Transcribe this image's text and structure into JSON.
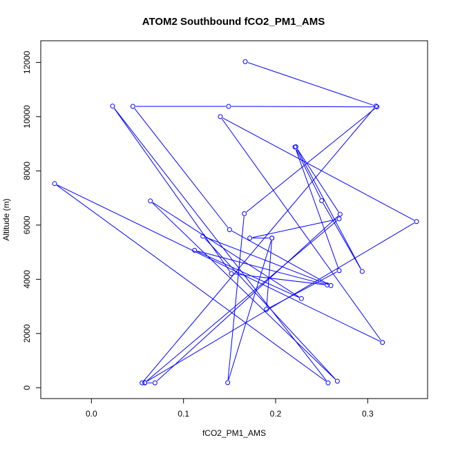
{
  "chart_data": {
    "type": "line",
    "title": "ATOM2 Southbound fCO2_PM1_AMS",
    "xlabel": "fCO2_PM1_AMS",
    "ylabel": "Altitude (m)",
    "xlim": [
      -0.055,
      0.365
    ],
    "ylim": [
      -400,
      12800
    ],
    "xticks": [
      "0.0",
      "0.1",
      "0.2",
      "0.3"
    ],
    "yticks": [
      "0",
      "2000",
      "4000",
      "6000",
      "8000",
      "10000",
      "12000"
    ],
    "grid": false,
    "legend": "none",
    "marker": "open-circle",
    "series": [
      {
        "color": "#0000ff",
        "points": [
          [
            0.167,
            12030
          ],
          [
            0.309,
            10390
          ],
          [
            0.055,
            180
          ],
          [
            0.058,
            180
          ],
          [
            0.069,
            180
          ],
          [
            0.27,
            6400
          ],
          [
            0.222,
            8890
          ],
          [
            0.294,
            4290
          ],
          [
            0.25,
            6900
          ],
          [
            0.221,
            8880
          ],
          [
            0.269,
            4320
          ],
          [
            0.19,
            2890
          ],
          [
            0.196,
            5520
          ],
          [
            0.148,
            190
          ],
          [
            0.166,
            6420
          ],
          [
            0.31,
            10360
          ],
          [
            0.149,
            10380
          ],
          [
            0.045,
            10380
          ],
          [
            0.15,
            5830
          ],
          [
            0.26,
            3770
          ],
          [
            0.121,
            5590
          ],
          [
            0.267,
            240
          ],
          [
            0.064,
            6890
          ],
          [
            0.228,
            3290
          ],
          [
            0.112,
            5070
          ],
          [
            0.256,
            3790
          ],
          [
            0.152,
            4210
          ],
          [
            0.023,
            10390
          ],
          [
            0.257,
            180
          ],
          [
            -0.04,
            7530
          ],
          [
            0.316,
            1670
          ],
          [
            0.14,
            10000
          ],
          [
            0.353,
            6130
          ],
          [
            0.058,
            190
          ],
          [
            0.269,
            6230
          ],
          [
            0.172,
            5520
          ],
          [
            0.196,
            5520
          ]
        ]
      }
    ]
  }
}
